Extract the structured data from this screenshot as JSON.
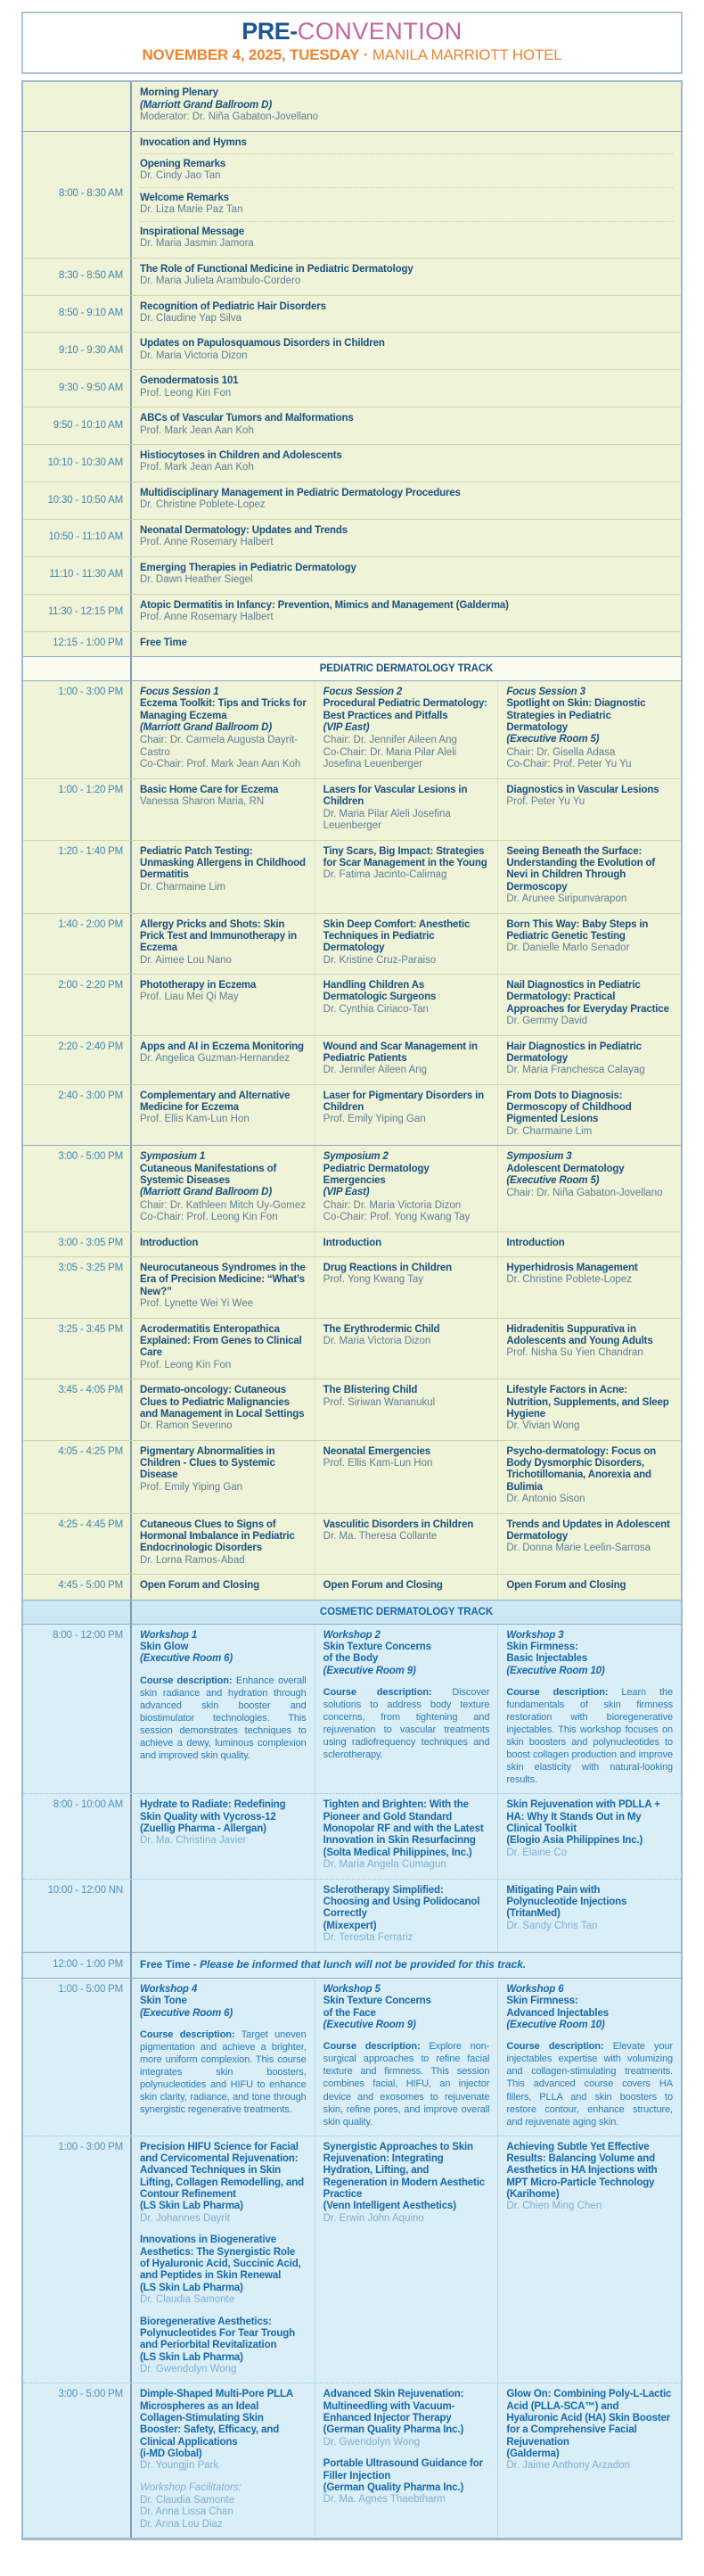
{
  "header": {
    "title_primary": "PRE-",
    "title_secondary": "CONVENTION",
    "date": "NOVEMBER 4, 2025, TUESDAY",
    "separator": "·",
    "venue": "MANILA MARRIOTT HOTEL",
    "colors": {
      "navy": "#1d578e",
      "pink": "#c4659d",
      "orange": "#ec8530",
      "pediatric_text": "#1a5180",
      "cosmetic_text": "#1769a9",
      "yellow_bg": "#eff3d7",
      "blue_bg": "#d9eef7"
    }
  },
  "plenary": {
    "intro_title": "Morning Plenary",
    "intro_room": "(Marriott Grand Ballroom D)",
    "intro_moderator": "Moderator: Dr. Niña Gabaton-Jovellano",
    "opening_time": "8:00 - 8:30 AM",
    "opening_items": [
      {
        "title": "Invocation and Hymns",
        "speaker": ""
      },
      {
        "title": "Opening Remarks",
        "speaker": "Dr. Cindy Jao Tan"
      },
      {
        "title": "Welcome Remarks",
        "speaker": "Dr. Liza Marie Paz Tan"
      },
      {
        "title": "Inspirational Message",
        "speaker": "Dr. Maria Jasmin Jamora"
      }
    ],
    "rows": [
      {
        "time": "8:30 - 8:50 AM",
        "title": "The Role of Functional Medicine in Pediatric Dermatology",
        "speaker": "Dr. Maria Julieta Arambulo-Cordero"
      },
      {
        "time": "8:50 - 9:10 AM",
        "title": "Recognition of Pediatric Hair Disorders",
        "speaker": "Dr. Claudine Yap Silva"
      },
      {
        "time": "9:10 - 9:30 AM",
        "title": "Updates on Papulosquamous Disorders in Children",
        "speaker": "Dr. Maria Victoria Dizon"
      },
      {
        "time": "9:30 - 9:50 AM",
        "title": "Genodermatosis 101",
        "speaker": "Prof. Leong Kin Fon"
      },
      {
        "time": "9:50 - 10:10 AM",
        "title": "ABCs of Vascular Tumors and Malformations",
        "speaker": "Prof. Mark Jean Aan Koh"
      },
      {
        "time": "10:10 - 10:30 AM",
        "title": "Histiocytoses in Children and Adolescents",
        "speaker": "Prof. Mark Jean Aan Koh"
      },
      {
        "time": "10:30 - 10:50 AM",
        "title": "Multidisciplinary Management in Pediatric Dermatology Procedures",
        "speaker": "Dr. Christine Poblete-Lopez"
      },
      {
        "time": "10:50 - 11:10 AM",
        "title": "Neonatal Dermatology: Updates and Trends",
        "speaker": "Prof. Anne Rosemary Halbert"
      },
      {
        "time": "11:10 - 11:30 AM",
        "title": "Emerging Therapies in Pediatric Dermatology",
        "speaker": "Dr. Dawn Heather Siegel"
      },
      {
        "time": "11:30 - 12:15 PM",
        "title": "Atopic Dermatitis in Infancy: Prevention, Mimics and Management (Galderma)",
        "speaker": "Prof. Anne Rosemary Halbert"
      },
      {
        "time": "12:15 - 1:00 PM",
        "title": "Free Time",
        "speaker": ""
      }
    ]
  },
  "pediatric": {
    "banner": "PEDIATRIC DERMATOLOGY TRACK",
    "focus_header": {
      "time": "1:00 - 3:00 PM",
      "sessions": [
        {
          "label": "Focus Session 1",
          "title": "Eczema Toolkit: Tips and Tricks for Managing Eczema",
          "room": "(Marriott Grand Ballroom D)",
          "chairs": "Chair: Dr. Carmela Augusta Dayrit-Castro\nCo-Chair: Prof. Mark Jean Aan Koh"
        },
        {
          "label": "Focus Session 2",
          "title": "Procedural Pediatric Dermatology: Best Practices and Pitfalls",
          "room": "(VIP East)",
          "chairs": "Chair: Dr. Jennifer Aileen Ang\nCo-Chair: Dr. Maria Pilar Aleli Josefina Leuenberger"
        },
        {
          "label": "Focus Session 3",
          "title": "Spotlight on Skin: Diagnostic Strategies in Pediatric Dermatology",
          "room": "(Executive Room 5)",
          "chairs": "Chair: Dr. Gisella Adasa\nCo-Chair: Prof. Peter Yu Yu"
        }
      ]
    },
    "focus_rows": [
      {
        "time": "1:00 - 1:20 PM",
        "cells": [
          {
            "title": "Basic Home Care for Eczema",
            "speaker": "Vanessa Sharon Maria, RN"
          },
          {
            "title": "Lasers for Vascular Lesions in Children",
            "speaker": "Dr. Maria Pilar Aleli Josefina Leuenberger"
          },
          {
            "title": "Diagnostics in Vascular Lesions",
            "speaker": "Prof. Peter Yu Yu"
          }
        ]
      },
      {
        "time": "1:20 - 1:40 PM",
        "cells": [
          {
            "title": "Pediatric Patch Testing: Unmasking Allergens in Childhood Dermatitis",
            "speaker": "Dr. Charmaine Lim"
          },
          {
            "title": "Tiny Scars, Big Impact: Strategies for Scar Management in the Young",
            "speaker": "Dr. Fatima Jacinto-Calimag"
          },
          {
            "title": "Seeing Beneath the Surface: Understanding the Evolution of Nevi in Children Through Dermoscopy",
            "speaker": "Dr. Arunee Siripunvarapon"
          }
        ]
      },
      {
        "time": "1:40 - 2:00 PM",
        "cells": [
          {
            "title": "Allergy Pricks and Shots: Skin Prick Test and Immunotherapy in Eczema",
            "speaker": "Dr. Aimee Lou Nano"
          },
          {
            "title": "Skin Deep Comfort: Anesthetic Techniques in Pediatric Dermatology",
            "speaker": "Dr. Kristine Cruz-Paraiso"
          },
          {
            "title": "Born This Way: Baby Steps in Pediatric Genetic Testing",
            "speaker": "Dr. Danielle Marlo Senador"
          }
        ]
      },
      {
        "time": "2:00 - 2:20 PM",
        "cells": [
          {
            "title": "Phototherapy in Eczema",
            "speaker": "Prof. Liau Mei Qi May"
          },
          {
            "title": "Handling Children As Dermatologic Surgeons",
            "speaker": "Dr. Cynthia Ciriaco-Tan"
          },
          {
            "title": "Nail Diagnostics in Pediatric Dermatology: Practical Approaches for Everyday Practice",
            "speaker": "Dr. Gemmy David"
          }
        ]
      },
      {
        "time": "2:20 - 2:40 PM",
        "cells": [
          {
            "title": "Apps and AI in Eczema Monitoring",
            "speaker": "Dr. Angelica Guzman-Hernandez"
          },
          {
            "title": "Wound and Scar Management in Pediatric Patients",
            "speaker": "Dr. Jennifer Aileen Ang"
          },
          {
            "title": "Hair Diagnostics in Pediatric Dermatology",
            "speaker": "Dr. Maria Franchesca Calayag"
          }
        ]
      },
      {
        "time": "2:40 - 3:00 PM",
        "cells": [
          {
            "title": "Complementary and Alternative Medicine for Eczema",
            "speaker": "Prof. Ellis Kam-Lun Hon"
          },
          {
            "title": "Laser for Pigmentary Disorders in Children",
            "speaker": "Prof. Emily Yiping Gan"
          },
          {
            "title": "From Dots to Diagnosis: Dermoscopy of Childhood Pigmented Lesions",
            "speaker": "Dr. Charmaine Lim"
          }
        ]
      }
    ],
    "symposium_header": {
      "time": "3:00 - 5:00 PM",
      "sessions": [
        {
          "label": "Symposium 1",
          "title": "Cutaneous Manifestations of Systemic Diseases",
          "room": "(Marriott Grand Ballroom D)",
          "chairs": "Chair: Dr. Kathleen Mitch Uy-Gomez\nCo-Chair: Prof. Leong Kin Fon"
        },
        {
          "label": "Symposium 2",
          "title": "Pediatric Dermatology Emergencies",
          "room": "(VIP East)",
          "chairs": "Chair: Dr. Maria Victoria Dizon\nCo-Chair: Prof. Yong Kwang Tay"
        },
        {
          "label": "Symposium 3",
          "title": "Adolescent Dermatology",
          "room": "(Executive Room 5)",
          "chairs": "Chair: Dr. Niña Gabaton-Jovellano"
        }
      ]
    },
    "symposium_rows": [
      {
        "time": "3:00 - 3:05 PM",
        "cells": [
          {
            "title": "Introduction",
            "speaker": ""
          },
          {
            "title": "Introduction",
            "speaker": ""
          },
          {
            "title": "Introduction",
            "speaker": ""
          }
        ]
      },
      {
        "time": "3:05 - 3:25 PM",
        "cells": [
          {
            "title": "Neurocutaneous Syndromes in the Era of Precision Medicine: “What’s New?”",
            "speaker": "Prof. Lynette Wei Yi Wee"
          },
          {
            "title": "Drug Reactions in Children",
            "speaker": "Prof. Yong Kwang Tay"
          },
          {
            "title": "Hyperhidrosis Management",
            "speaker": "Dr. Christine Poblete-Lopez"
          }
        ]
      },
      {
        "time": "3:25 - 3:45 PM",
        "cells": [
          {
            "title": "Acrodermatitis Enteropathica Explained: From Genes to Clinical Care",
            "speaker": "Prof. Leong Kin Fon"
          },
          {
            "title": "The Erythrodermic Child",
            "speaker": "Dr. Maria Victoria Dizon"
          },
          {
            "title": "Hidradenitis Suppurativa in Adolescents and Young Adults",
            "speaker": "Prof. Nisha Su Yien Chandran"
          }
        ]
      },
      {
        "time": "3:45 - 4:05 PM",
        "cells": [
          {
            "title": "Dermato-oncology: Cutaneous Clues to Pediatric Malignancies and Management in Local Settings",
            "speaker": "Dr. Ramon Severino"
          },
          {
            "title": "The Blistering Child",
            "speaker": "Prof. Siriwan Wananukul"
          },
          {
            "title": "Lifestyle Factors in Acne: Nutrition, Supplements, and Sleep Hygiene",
            "speaker": "Dr. Vivian Wong"
          }
        ]
      },
      {
        "time": "4:05 - 4:25 PM",
        "cells": [
          {
            "title": "Pigmentary Abnormalities in Children - Clues to Systemic Disease",
            "speaker": "Prof. Emily Yiping Gan"
          },
          {
            "title": "Neonatal Emergencies",
            "speaker": "Prof. Ellis Kam-Lun Hon"
          },
          {
            "title": "Psycho-dermatology: Focus on Body Dysmorphic Disorders, Trichotillomania, Anorexia and Bulimia",
            "speaker": "Dr. Antonio Sison"
          }
        ]
      },
      {
        "time": "4:25 - 4:45 PM",
        "cells": [
          {
            "title": "Cutaneous Clues to Signs of Hormonal Imbalance in Pediatric Endocrinologic Disorders",
            "speaker": "Dr. Lorna Ramos-Abad"
          },
          {
            "title": "Vasculitic Disorders in Children",
            "speaker": "Dr. Ma. Theresa Collante"
          },
          {
            "title": "Trends and Updates in Adolescent Dermatology",
            "speaker": "Dr. Donna Marie Leelin-Sarrosa"
          }
        ]
      },
      {
        "time": "4:45 - 5:00 PM",
        "cells": [
          {
            "title": "Open Forum and Closing",
            "speaker": ""
          },
          {
            "title": "Open Forum and Closing",
            "speaker": ""
          },
          {
            "title": "Open Forum and Closing",
            "speaker": ""
          }
        ]
      }
    ]
  },
  "cosmetic": {
    "banner": "COSMETIC DERMATOLOGY TRACK",
    "workshops_am": {
      "time": "8:00 - 12:00 PM",
      "sessions": [
        {
          "label": "Workshop 1",
          "title": "Skin Glow",
          "room": "(Executive Room 6)",
          "desc_label": "Course description:",
          "desc": "Enhance overall skin radiance and hydration through advanced skin booster and biostimulator technologies. This session demonstrates techniques to achieve a dewy, luminous complexion and improved skin quality."
        },
        {
          "label": "Workshop 2",
          "title": "Skin Texture Concerns\nof the Body",
          "room": "(Executive Room 9)",
          "desc_label": "Course description:",
          "desc": "Discover solutions to address body texture concerns, from tightening and rejuvenation to vascular treatments using radiofrequency techniques and sclerotherapy."
        },
        {
          "label": "Workshop 3",
          "title": "Skin Firmness:\nBasic Injectables",
          "room": "(Executive Room 10)",
          "desc_label": "Course description:",
          "desc": "Learn the fundamentals of skin firmness restoration with bioregenerative injectables. This workshop focuses on skin boosters and polynucleotides to boost collagen production and improve skin elasticity with natural-looking results."
        }
      ]
    },
    "rows_am": [
      {
        "time": "8:00 - 10:00 AM",
        "cells": [
          {
            "talks": [
              {
                "title": "Hydrate to Radiate: Redefining Skin Quality with Vycross-12\n(Zuellig Pharma - Allergan)",
                "speaker": "Dr. Ma. Christina Javier"
              }
            ]
          },
          {
            "talks": [
              {
                "title": "Tighten and Brighten: With the Pioneer and Gold Standard Monopolar RF and with the Latest Innovation in Skin Resurfacinng\n(Solta Medical Philippines, Inc.)",
                "speaker": "Dr. Maria Angela Cumagun"
              }
            ]
          },
          {
            "talks": [
              {
                "title": "Skin Rejuvenation with PDLLA + HA: Why It Stands Out in My Clinical Toolkit\n(Elogio Asia Philippines Inc.)",
                "speaker": "Dr. Elaine Co"
              }
            ]
          }
        ]
      },
      {
        "time": "10:00 - 12:00 NN",
        "cells": [
          {
            "talks": []
          },
          {
            "talks": [
              {
                "title": "Sclerotherapy Simplified: Choosing and Using Polidocanol Correctly\n(Mixexpert)",
                "speaker": "Dr. Teresita Ferrariz"
              }
            ]
          },
          {
            "talks": [
              {
                "title": "Mitigating Pain with Polynucleotide Injections\n(TritanMed)",
                "speaker": "Dr. Sandy Chris Tan"
              }
            ]
          }
        ]
      }
    ],
    "free_time": {
      "time": "12:00 - 1:00 PM",
      "title": "Free Time -",
      "note": "Please be informed that lunch will not be provided for this track."
    },
    "workshops_pm": {
      "time": "1:00 - 5:00 PM",
      "sessions": [
        {
          "label": "Workshop 4",
          "title": "Skin Tone",
          "room": "(Executive Room 6)",
          "desc_label": "Course description:",
          "desc": "Target uneven pigmentation and achieve a brighter, more uniform complexion. This course integrates skin boosters, polynucleotides and HIFU to enhance skin clarity, radiance, and tone through synergistic regenerative treatments."
        },
        {
          "label": "Workshop 5",
          "title": "Skin Texture Concerns\nof the Face",
          "room": "(Executive Room 9)",
          "desc_label": "Course description:",
          "desc": "Explore non-surgical approaches to refine facial texture and firmness. This session combines facial, HIFU, an injector device and exosomes to rejuvenate skin, refine pores, and improve overall skin quality."
        },
        {
          "label": "Workshop 6",
          "title": "Skin Firmness:\nAdvanced Injectables",
          "room": "(Executive Room 10)",
          "desc_label": "Course description:",
          "desc": "Elevate your injectables expertise with volumizing and collagen-stimulating treatments. This advanced course covers HA fillers, PLLA and skin boosters to restore contour, enhance structure, and rejuvenate aging skin."
        }
      ]
    },
    "rows_pm": [
      {
        "time": "1:00 - 3:00 PM",
        "cells": [
          {
            "talks": [
              {
                "title": "Precision HIFU Science for Facial and Cervicomental Rejuvenation: Advanced Techniques in Skin Lifting, Collagen Remodelling, and Contour Refinement\n(LS Skin Lab Pharma)",
                "speaker": "Dr. Johannes Dayrit"
              },
              {
                "title": "Innovations in Biogenerative Aesthetics: The Synergistic Role of Hyaluronic Acid, Succinic Acid, and Peptides in Skin Renewal\n(LS Skin Lab Pharma)",
                "speaker": "Dr. Claudia Samonte"
              },
              {
                "title": "Bioregenerative Aesthetics: Polynucleotides For Tear Trough and Periorbital Revitalization\n(LS Skin Lab Pharma)",
                "speaker": "Dr. Gwendolyn Wong"
              }
            ]
          },
          {
            "talks": [
              {
                "title": "Synergistic Approaches to Skin Rejuvenation: Integrating Hydration, Lifting, and Regeneration in Modern Aesthetic Practice\n(Venn Intelligent Aesthetics)",
                "speaker": "Dr. Erwin John Aquino"
              }
            ]
          },
          {
            "talks": [
              {
                "title": "Achieving Subtle Yet Effective Results: Balancing Volume and Aesthetics in HA Injections with MPT Micro-Particle Technology\n(Karihome)",
                "speaker": "Dr. Chien Ming Chen"
              }
            ]
          }
        ]
      },
      {
        "time": "3:00 - 5:00 PM",
        "cells": [
          {
            "talks": [
              {
                "title": "Dimple-Shaped Multi-Pore PLLA Microspheres as an Ideal Collagen-Stimulating Skin Booster: Safety, Efficacy, and Clinical Applications\n(i-MD Global)",
                "speaker": "Dr. Youngjin Park"
              },
              {
                "note": "Workshop Facilitators:",
                "speaker": "Dr. Claudia Samonte\nDr. Anna Lissa Chan\nDr. Anna Lou Diaz"
              }
            ]
          },
          {
            "talks": [
              {
                "title": "Advanced Skin Rejuvenation: Multineedling with Vacuum-Enhanced Injector Therapy\n(German Quality Pharma Inc.)",
                "speaker": "Dr. Gwendolyn Wong"
              },
              {
                "title": "Portable Ultrasound Guidance for Filler Injection\n(German Quality Pharma Inc.)",
                "speaker": "Dr. Ma. Agnes Thaebtharm"
              }
            ]
          },
          {
            "talks": [
              {
                "title": "Glow On: Combining Poly-L-Lactic Acid (PLLA-SCA™) and Hyaluronic Acid (HA) Skin Booster for a Comprehensive Facial Rejuvenation\n(Galderma)",
                "speaker": "Dr. Jaime Anthony Arzadon"
              }
            ]
          }
        ]
      }
    ]
  }
}
